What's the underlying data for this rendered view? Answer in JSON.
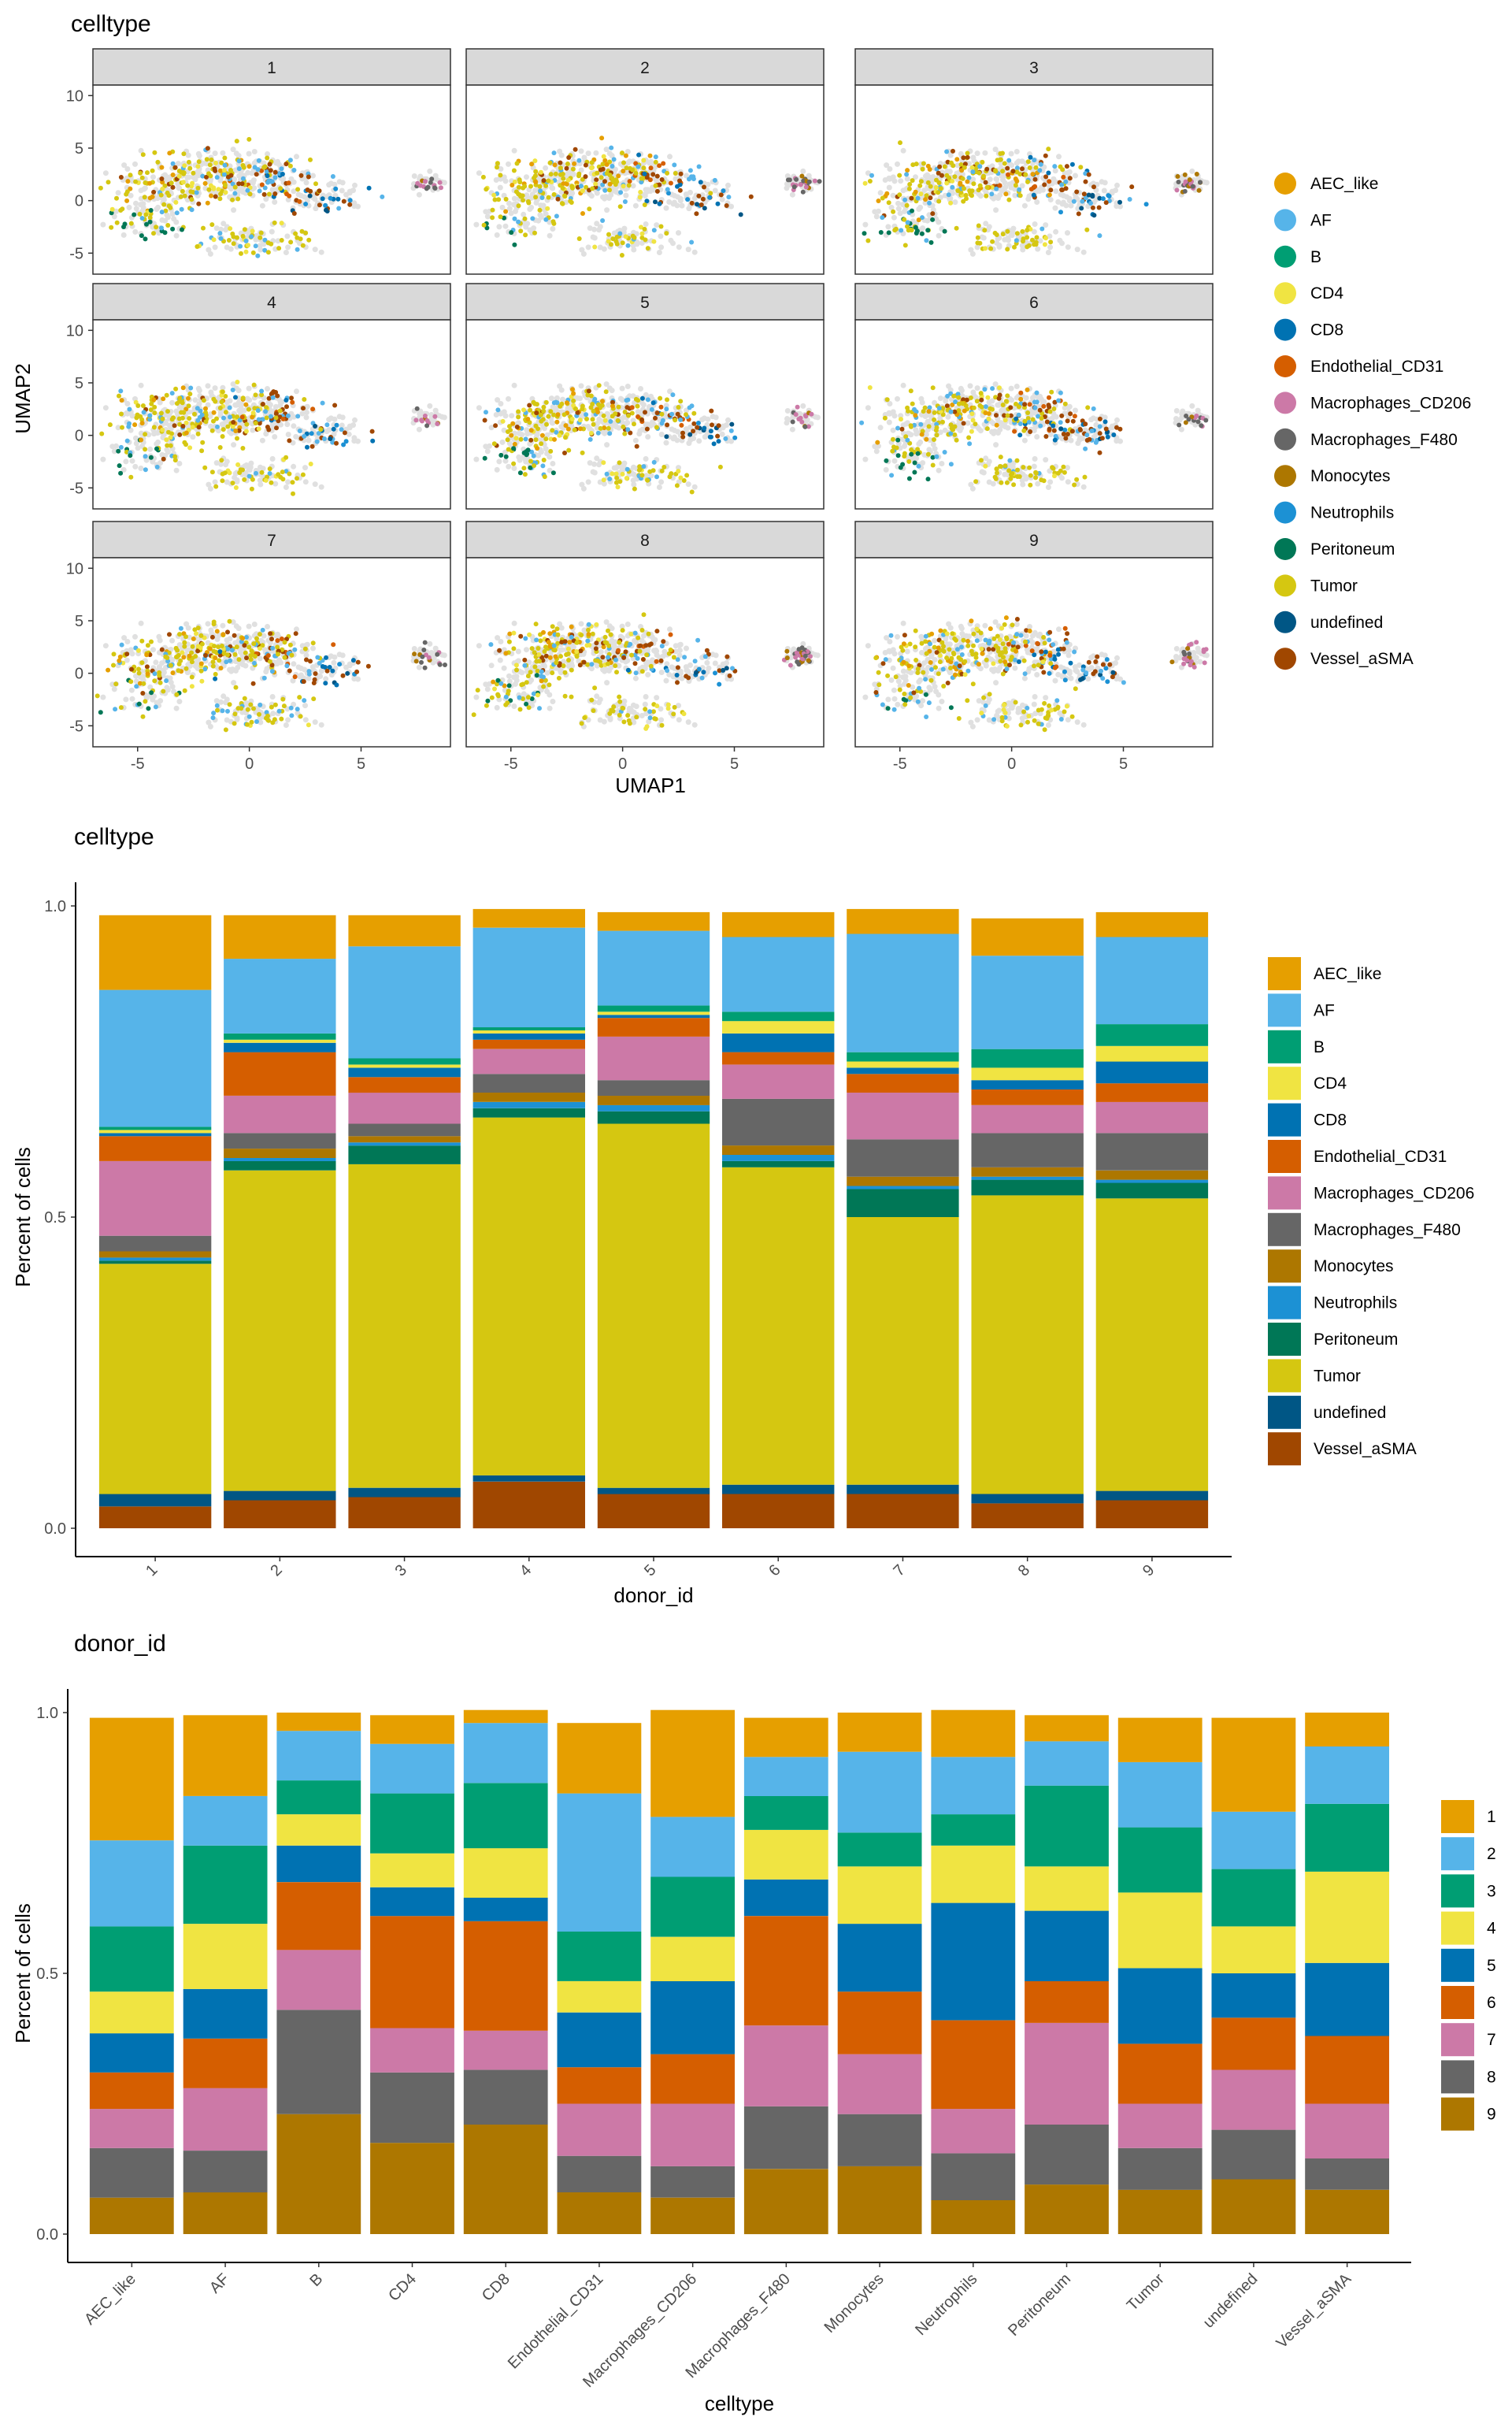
{
  "palette": {
    "AEC_like": "#E69F00",
    "AF": "#56B4E9",
    "B": "#009E73",
    "CD4": "#F0E442",
    "CD8": "#0072B2",
    "Endothelial_CD31": "#D55E00",
    "Macrophages_CD206": "#CC79A7",
    "Macrophages_F480": "#666666",
    "Monocytes": "#AD7700",
    "Neutrophils": "#1C91D4",
    "Peritoneum": "#007756",
    "Tumor": "#D5C711",
    "undefined": "#005685",
    "Vessel_aSMA": "#A04700"
  },
  "donor_palette": [
    "#E69F00",
    "#56B4E9",
    "#009E73",
    "#F0E442",
    "#0072B2",
    "#D55E00",
    "#CC79A7",
    "#666666",
    "#AD7700"
  ],
  "chart_data": [
    {
      "type": "scatter",
      "title": "celltype",
      "xlabel": "UMAP1",
      "ylabel": "UMAP2",
      "facets": [
        "1",
        "2",
        "3",
        "4",
        "5",
        "6",
        "7",
        "8",
        "9"
      ],
      "xlim": [
        -7.0,
        9.0
      ],
      "ylim": [
        -7.0,
        11.0
      ],
      "xticks": [
        -5,
        0,
        5
      ],
      "yticks": [
        -5,
        0,
        5,
        10
      ],
      "legend_title": "",
      "legend_position": "right",
      "legend": [
        "AEC_like",
        "AF",
        "B",
        "CD4",
        "CD8",
        "Endothelial_CD31",
        "Macrophages_CD206",
        "Macrophages_F480",
        "Monocytes",
        "Neutrophils",
        "Peritoneum",
        "Tumor",
        "undefined",
        "Vessel_aSMA"
      ]
    },
    {
      "type": "bar",
      "stacked": true,
      "title": "celltype",
      "xlabel": "donor_id",
      "ylabel": "Percent of cells",
      "ylim": [
        0,
        1
      ],
      "yticks": [
        "0.0",
        "0.5",
        "1.0"
      ],
      "legend_position": "right",
      "categories": [
        "1",
        "2",
        "3",
        "4",
        "5",
        "6",
        "7",
        "8",
        "9"
      ],
      "series": [
        {
          "name": "AEC_like",
          "values": [
            0.12,
            0.07,
            0.05,
            0.03,
            0.03,
            0.04,
            0.04,
            0.06,
            0.04
          ]
        },
        {
          "name": "AF",
          "values": [
            0.22,
            0.12,
            0.18,
            0.16,
            0.12,
            0.12,
            0.19,
            0.15,
            0.14
          ]
        },
        {
          "name": "B",
          "values": [
            0.005,
            0.01,
            0.01,
            0.005,
            0.01,
            0.015,
            0.015,
            0.03,
            0.035
          ]
        },
        {
          "name": "CD4",
          "values": [
            0.005,
            0.005,
            0.005,
            0.005,
            0.005,
            0.02,
            0.01,
            0.02,
            0.025
          ]
        },
        {
          "name": "CD8",
          "values": [
            0.005,
            0.015,
            0.015,
            0.01,
            0.005,
            0.03,
            0.01,
            0.015,
            0.035
          ]
        },
        {
          "name": "Endothelial_CD31",
          "values": [
            0.04,
            0.07,
            0.025,
            0.015,
            0.03,
            0.02,
            0.03,
            0.025,
            0.03
          ]
        },
        {
          "name": "Macrophages_CD206",
          "values": [
            0.12,
            0.06,
            0.05,
            0.04,
            0.07,
            0.055,
            0.075,
            0.045,
            0.05
          ]
        },
        {
          "name": "Macrophages_F480",
          "values": [
            0.025,
            0.025,
            0.02,
            0.03,
            0.025,
            0.075,
            0.06,
            0.055,
            0.06
          ]
        },
        {
          "name": "Monocytes",
          "values": [
            0.01,
            0.015,
            0.01,
            0.015,
            0.015,
            0.015,
            0.015,
            0.015,
            0.015
          ]
        },
        {
          "name": "Neutrophils",
          "values": [
            0.005,
            0.005,
            0.005,
            0.01,
            0.01,
            0.01,
            0.005,
            0.005,
            0.005
          ]
        },
        {
          "name": "Peritoneum",
          "values": [
            0.005,
            0.015,
            0.03,
            0.015,
            0.02,
            0.01,
            0.045,
            0.025,
            0.025
          ]
        },
        {
          "name": "Tumor",
          "values": [
            0.37,
            0.515,
            0.52,
            0.575,
            0.585,
            0.51,
            0.43,
            0.48,
            0.47
          ]
        },
        {
          "name": "undefined",
          "values": [
            0.02,
            0.015,
            0.015,
            0.01,
            0.01,
            0.015,
            0.015,
            0.015,
            0.015
          ]
        },
        {
          "name": "Vessel_aSMA",
          "values": [
            0.035,
            0.045,
            0.05,
            0.075,
            0.055,
            0.055,
            0.055,
            0.04,
            0.045
          ]
        }
      ]
    },
    {
      "type": "bar",
      "stacked": true,
      "title": "donor_id",
      "xlabel": "celltype",
      "ylabel": "Percent of cells",
      "ylim": [
        0,
        1
      ],
      "yticks": [
        "0.0",
        "0.5",
        "1.0"
      ],
      "legend_position": "right",
      "categories": [
        "AEC_like",
        "AF",
        "B",
        "CD4",
        "CD8",
        "Endothelial_CD31",
        "Macrophages_CD206",
        "Macrophages_F480",
        "Monocytes",
        "Neutrophils",
        "Peritoneum",
        "Tumor",
        "undefined",
        "Vessel_aSMA"
      ],
      "series": [
        {
          "name": "1",
          "values": [
            0.235,
            0.155,
            0.035,
            0.055,
            0.025,
            0.135,
            0.205,
            0.075,
            0.075,
            0.09,
            0.05,
            0.085,
            0.18,
            0.065
          ]
        },
        {
          "name": "2",
          "values": [
            0.165,
            0.095,
            0.095,
            0.095,
            0.115,
            0.265,
            0.115,
            0.075,
            0.155,
            0.11,
            0.085,
            0.125,
            0.11,
            0.11
          ]
        },
        {
          "name": "3",
          "values": [
            0.125,
            0.15,
            0.065,
            0.115,
            0.125,
            0.095,
            0.115,
            0.065,
            0.065,
            0.06,
            0.155,
            0.125,
            0.11,
            0.13
          ]
        },
        {
          "name": "4",
          "values": [
            0.08,
            0.125,
            0.06,
            0.065,
            0.095,
            0.06,
            0.085,
            0.095,
            0.11,
            0.11,
            0.085,
            0.145,
            0.09,
            0.175
          ]
        },
        {
          "name": "5",
          "values": [
            0.075,
            0.095,
            0.07,
            0.055,
            0.045,
            0.105,
            0.14,
            0.07,
            0.13,
            0.225,
            0.135,
            0.145,
            0.085,
            0.14
          ]
        },
        {
          "name": "6",
          "values": [
            0.07,
            0.095,
            0.13,
            0.215,
            0.21,
            0.07,
            0.095,
            0.21,
            0.12,
            0.17,
            0.08,
            0.115,
            0.1,
            0.13
          ]
        },
        {
          "name": "7",
          "values": [
            0.075,
            0.12,
            0.115,
            0.085,
            0.075,
            0.1,
            0.12,
            0.155,
            0.115,
            0.085,
            0.195,
            0.085,
            0.115,
            0.105
          ]
        },
        {
          "name": "8",
          "values": [
            0.095,
            0.08,
            0.2,
            0.135,
            0.105,
            0.07,
            0.06,
            0.12,
            0.1,
            0.09,
            0.115,
            0.08,
            0.095,
            0.06
          ]
        },
        {
          "name": "9",
          "values": [
            0.07,
            0.08,
            0.23,
            0.175,
            0.21,
            0.08,
            0.07,
            0.125,
            0.13,
            0.065,
            0.095,
            0.085,
            0.105,
            0.085
          ]
        }
      ]
    }
  ]
}
